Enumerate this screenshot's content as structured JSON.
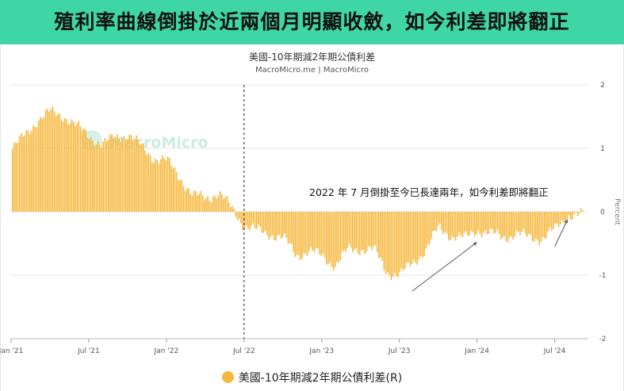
{
  "banner": {
    "title": "殖利率曲線倒掛於近兩個月明顯收斂，如今利差即將翻正"
  },
  "chart_data": {
    "type": "bar",
    "title": "美國-10年期減2年期公債利差",
    "subtitle": "MacroMicro.me | MacroMicro",
    "watermark": "MacroMicro",
    "ylabel": "Percent",
    "ylim": [
      -2,
      2
    ],
    "y_ticks": [
      "2",
      "1",
      "0",
      "-1",
      "-2"
    ],
    "y_tick_values": [
      2,
      1,
      0,
      -1,
      -2
    ],
    "x_ticks": [
      "Jan '21",
      "Jul '21",
      "Jan '22",
      "Jul '22",
      "Jan '23",
      "Jul '23",
      "Jan '24",
      "Jul '24"
    ],
    "x_tick_values": [
      "2021-01",
      "2021-07",
      "2022-01",
      "2022-07",
      "2023-01",
      "2023-07",
      "2024-01",
      "2024-07"
    ],
    "grid": "horizontal",
    "color": "#f6b73c",
    "legend_position": "bottom",
    "series": [
      {
        "name": "美國-10年期減2年期公債利差(R)",
        "x": [
          "2021-01",
          "2021-02",
          "2021-03",
          "2021-04",
          "2021-05",
          "2021-06",
          "2021-07",
          "2021-08",
          "2021-09",
          "2021-10",
          "2021-11",
          "2021-12",
          "2022-01",
          "2022-02",
          "2022-03",
          "2022-04",
          "2022-05",
          "2022-06",
          "2022-07",
          "2022-08",
          "2022-09",
          "2022-10",
          "2022-11",
          "2022-12",
          "2023-01",
          "2023-02",
          "2023-03",
          "2023-04",
          "2023-05",
          "2023-06",
          "2023-07",
          "2023-08",
          "2023-09",
          "2023-10",
          "2023-11",
          "2023-12",
          "2024-01",
          "2024-02",
          "2024-03",
          "2024-04",
          "2024-05",
          "2024-06",
          "2024-07",
          "2024-08"
        ],
        "values": [
          0.98,
          1.2,
          1.45,
          1.57,
          1.52,
          1.35,
          1.2,
          1.05,
          1.18,
          1.22,
          1.03,
          0.85,
          0.8,
          0.55,
          0.25,
          0.22,
          0.3,
          0.05,
          -0.22,
          -0.3,
          -0.35,
          -0.42,
          -0.68,
          -0.62,
          -0.7,
          -0.85,
          -0.6,
          -0.58,
          -0.6,
          -0.95,
          -1.0,
          -0.8,
          -0.6,
          -0.25,
          -0.38,
          -0.42,
          -0.28,
          -0.35,
          -0.4,
          -0.35,
          -0.4,
          -0.42,
          -0.28,
          -0.05
        ]
      }
    ],
    "annotations": [
      {
        "text": "2022 年 7 月倒掛至今已長達兩年，如今利差即將翻正",
        "x": "2023-03",
        "y": 0.25
      },
      {
        "type": "vertical-line",
        "x": "2022-07",
        "style": "dashed"
      },
      {
        "type": "arrow",
        "from": [
          "2023-08",
          -1.25
        ],
        "to": [
          "2024-01",
          -0.48
        ]
      },
      {
        "type": "arrow",
        "from": [
          "2024-07",
          -0.55
        ],
        "to": [
          "2024-08",
          -0.12
        ]
      }
    ]
  }
}
